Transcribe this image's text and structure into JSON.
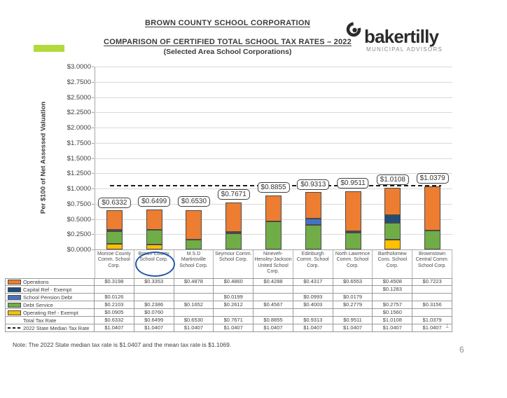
{
  "header": {
    "title1": "BROWN COUNTY SCHOOL CORPORATION",
    "title2": "COMPARISON OF CERTIFIED TOTAL SCHOOL TAX RATES – 2022",
    "title3": "(Selected Area School Corporations)"
  },
  "logo": {
    "brand": "bakertilly",
    "tagline": "MUNICIPAL ADVISORS"
  },
  "note": "Note: The 2022 State median tax rate is $1.0407 and the mean tax rate is $1.1069.",
  "page_number": "6",
  "table_mark": "1",
  "colors": {
    "operations": "#ED7D31",
    "capital_ref": "#1F4E79",
    "school_pension": "#4472C4",
    "debt_service": "#70AD47",
    "operating_ref": "#FFC000",
    "accent_bar": "#B2D93D",
    "median_line": "#1c1c1c",
    "highlight_ellipse": "#2458A8"
  },
  "chart_data": {
    "type": "bar",
    "stacked": true,
    "title": "Comparison of Certified Total School Tax Rates - 2022",
    "ylabel": "Per $100 of Net Assessed Valuation",
    "ylim": [
      0,
      3.0
    ],
    "ytick_step": 0.25,
    "grid": true,
    "legend_position": "table-left",
    "categories": [
      "Monroe County Comm. School Corp.",
      "Brown County School Corp.",
      "M.S.D Martinsville School Corp.",
      "Seymour Comm. School Corp.",
      "Nineveh-Hensley-Jackson United School Corp.",
      "Edinburgh Comm. School Corp.",
      "North Lawrence Comm. School Corp.",
      "Bartholomew Cons. School Corp.",
      "Brownstown Central Comm. School Corp."
    ],
    "series": [
      {
        "name": "Operations",
        "color_key": "operations",
        "values": [
          0.3198,
          0.3353,
          0.4878,
          0.486,
          0.4288,
          0.4317,
          0.6553,
          0.4508,
          0.7223
        ]
      },
      {
        "name": "Capital Ref - Exempt",
        "color_key": "capital_ref",
        "values": [
          null,
          null,
          null,
          null,
          null,
          null,
          null,
          0.1283,
          null
        ]
      },
      {
        "name": "School Pension Debt",
        "color_key": "school_pension",
        "values": [
          0.0126,
          null,
          null,
          0.0199,
          null,
          0.0993,
          0.0179,
          null,
          null
        ]
      },
      {
        "name": "Debt Service",
        "color_key": "debt_service",
        "values": [
          0.2103,
          0.2386,
          0.1652,
          0.2612,
          0.4567,
          0.4003,
          0.2779,
          0.2757,
          0.3156
        ]
      },
      {
        "name": "Operating Ref - Exempt",
        "color_key": "operating_ref",
        "values": [
          0.0905,
          0.076,
          null,
          null,
          null,
          null,
          null,
          0.156,
          null
        ]
      }
    ],
    "stack_order_bottom_to_top": [
      "Operating Ref - Exempt",
      "Debt Service",
      "School Pension Debt",
      "Capital Ref - Exempt",
      "Operations"
    ],
    "totals": {
      "label": "Total Tax Rate",
      "values": [
        0.6332,
        0.6499,
        0.653,
        0.7671,
        0.8855,
        0.9313,
        0.9511,
        1.0108,
        1.0379
      ]
    },
    "median": {
      "label": "2022 State Median Tax Rate",
      "value": 1.0407,
      "values": [
        1.0407,
        1.0407,
        1.0407,
        1.0407,
        1.0407,
        1.0407,
        1.0407,
        1.0407,
        1.0407
      ]
    },
    "highlighted_category_index": 1
  }
}
